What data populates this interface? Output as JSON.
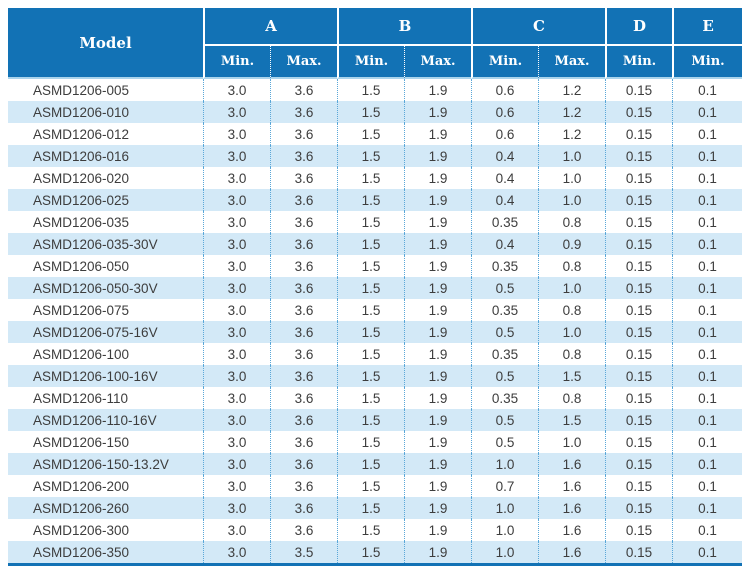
{
  "table": {
    "model_label": "Model",
    "groups": [
      {
        "label": "A"
      },
      {
        "label": "B"
      },
      {
        "label": "C"
      },
      {
        "label": "D"
      },
      {
        "label": "E"
      }
    ],
    "sub_headers": [
      "Min.",
      "Max.",
      "Min.",
      "Max.",
      "Min.",
      "Max.",
      "Min.",
      "Min."
    ],
    "rows": [
      {
        "model": "ASMD1206-005",
        "values": [
          "3.0",
          "3.6",
          "1.5",
          "1.9",
          "0.6",
          "1.2",
          "0.15",
          "0.1"
        ]
      },
      {
        "model": "ASMD1206-010",
        "values": [
          "3.0",
          "3.6",
          "1.5",
          "1.9",
          "0.6",
          "1.2",
          "0.15",
          "0.1"
        ]
      },
      {
        "model": "ASMD1206-012",
        "values": [
          "3.0",
          "3.6",
          "1.5",
          "1.9",
          "0.6",
          "1.2",
          "0.15",
          "0.1"
        ]
      },
      {
        "model": "ASMD1206-016",
        "values": [
          "3.0",
          "3.6",
          "1.5",
          "1.9",
          "0.4",
          "1.0",
          "0.15",
          "0.1"
        ]
      },
      {
        "model": "ASMD1206-020",
        "values": [
          "3.0",
          "3.6",
          "1.5",
          "1.9",
          "0.4",
          "1.0",
          "0.15",
          "0.1"
        ]
      },
      {
        "model": "ASMD1206-025",
        "values": [
          "3.0",
          "3.6",
          "1.5",
          "1.9",
          "0.4",
          "1.0",
          "0.15",
          "0.1"
        ]
      },
      {
        "model": "ASMD1206-035",
        "values": [
          "3.0",
          "3.6",
          "1.5",
          "1.9",
          "0.35",
          "0.8",
          "0.15",
          "0.1"
        ]
      },
      {
        "model": "ASMD1206-035-30V",
        "values": [
          "3.0",
          "3.6",
          "1.5",
          "1.9",
          "0.4",
          "0.9",
          "0.15",
          "0.1"
        ]
      },
      {
        "model": "ASMD1206-050",
        "values": [
          "3.0",
          "3.6",
          "1.5",
          "1.9",
          "0.35",
          "0.8",
          "0.15",
          "0.1"
        ]
      },
      {
        "model": "ASMD1206-050-30V",
        "values": [
          "3.0",
          "3.6",
          "1.5",
          "1.9",
          "0.5",
          "1.0",
          "0.15",
          "0.1"
        ]
      },
      {
        "model": "ASMD1206-075",
        "values": [
          "3.0",
          "3.6",
          "1.5",
          "1.9",
          "0.35",
          "0.8",
          "0.15",
          "0.1"
        ]
      },
      {
        "model": "ASMD1206-075-16V",
        "values": [
          "3.0",
          "3.6",
          "1.5",
          "1.9",
          "0.5",
          "1.0",
          "0.15",
          "0.1"
        ]
      },
      {
        "model": "ASMD1206-100",
        "values": [
          "3.0",
          "3.6",
          "1.5",
          "1.9",
          "0.35",
          "0.8",
          "0.15",
          "0.1"
        ]
      },
      {
        "model": "ASMD1206-100-16V",
        "values": [
          "3.0",
          "3.6",
          "1.5",
          "1.9",
          "0.5",
          "1.5",
          "0.15",
          "0.1"
        ]
      },
      {
        "model": "ASMD1206-110",
        "values": [
          "3.0",
          "3.6",
          "1.5",
          "1.9",
          "0.35",
          "0.8",
          "0.15",
          "0.1"
        ]
      },
      {
        "model": "ASMD1206-110-16V",
        "values": [
          "3.0",
          "3.6",
          "1.5",
          "1.9",
          "0.5",
          "1.5",
          "0.15",
          "0.1"
        ]
      },
      {
        "model": "ASMD1206-150",
        "values": [
          "3.0",
          "3.6",
          "1.5",
          "1.9",
          "0.5",
          "1.0",
          "0.15",
          "0.1"
        ]
      },
      {
        "model": "ASMD1206-150-13.2V",
        "values": [
          "3.0",
          "3.6",
          "1.5",
          "1.9",
          "1.0",
          "1.6",
          "0.15",
          "0.1"
        ]
      },
      {
        "model": "ASMD1206-200",
        "values": [
          "3.0",
          "3.6",
          "1.5",
          "1.9",
          "0.7",
          "1.6",
          "0.15",
          "0.1"
        ]
      },
      {
        "model": "ASMD1206-260",
        "values": [
          "3.0",
          "3.6",
          "1.5",
          "1.9",
          "1.0",
          "1.6",
          "0.15",
          "0.1"
        ]
      },
      {
        "model": "ASMD1206-300",
        "values": [
          "3.0",
          "3.6",
          "1.5",
          "1.9",
          "1.0",
          "1.6",
          "0.15",
          "0.1"
        ]
      },
      {
        "model": "ASMD1206-350",
        "values": [
          "3.0",
          "3.5",
          "1.5",
          "1.9",
          "1.0",
          "1.6",
          "0.15",
          "0.1"
        ]
      }
    ]
  },
  "colors": {
    "header_bg": "#1272b5",
    "header_text": "#ffffff",
    "row_alt_bg": "#d3e9f7",
    "dotted_line": "#5aa7d8",
    "header_underline": "#aad4ec",
    "bottom_border": "#1272b5",
    "body_text": "#3d3d3d"
  },
  "chart_data": {
    "type": "table",
    "title": "",
    "columns": [
      "Model",
      "A Min.",
      "A Max.",
      "B Min.",
      "B Max.",
      "C Min.",
      "C Max.",
      "D Min.",
      "E Min."
    ],
    "rows": [
      [
        "ASMD1206-005",
        3.0,
        3.6,
        1.5,
        1.9,
        0.6,
        1.2,
        0.15,
        0.1
      ],
      [
        "ASMD1206-010",
        3.0,
        3.6,
        1.5,
        1.9,
        0.6,
        1.2,
        0.15,
        0.1
      ],
      [
        "ASMD1206-012",
        3.0,
        3.6,
        1.5,
        1.9,
        0.6,
        1.2,
        0.15,
        0.1
      ],
      [
        "ASMD1206-016",
        3.0,
        3.6,
        1.5,
        1.9,
        0.4,
        1.0,
        0.15,
        0.1
      ],
      [
        "ASMD1206-020",
        3.0,
        3.6,
        1.5,
        1.9,
        0.4,
        1.0,
        0.15,
        0.1
      ],
      [
        "ASMD1206-025",
        3.0,
        3.6,
        1.5,
        1.9,
        0.4,
        1.0,
        0.15,
        0.1
      ],
      [
        "ASMD1206-035",
        3.0,
        3.6,
        1.5,
        1.9,
        0.35,
        0.8,
        0.15,
        0.1
      ],
      [
        "ASMD1206-035-30V",
        3.0,
        3.6,
        1.5,
        1.9,
        0.4,
        0.9,
        0.15,
        0.1
      ],
      [
        "ASMD1206-050",
        3.0,
        3.6,
        1.5,
        1.9,
        0.35,
        0.8,
        0.15,
        0.1
      ],
      [
        "ASMD1206-050-30V",
        3.0,
        3.6,
        1.5,
        1.9,
        0.5,
        1.0,
        0.15,
        0.1
      ],
      [
        "ASMD1206-075",
        3.0,
        3.6,
        1.5,
        1.9,
        0.35,
        0.8,
        0.15,
        0.1
      ],
      [
        "ASMD1206-075-16V",
        3.0,
        3.6,
        1.5,
        1.9,
        0.5,
        1.0,
        0.15,
        0.1
      ],
      [
        "ASMD1206-100",
        3.0,
        3.6,
        1.5,
        1.9,
        0.35,
        0.8,
        0.15,
        0.1
      ],
      [
        "ASMD1206-100-16V",
        3.0,
        3.6,
        1.5,
        1.9,
        0.5,
        1.5,
        0.15,
        0.1
      ],
      [
        "ASMD1206-110",
        3.0,
        3.6,
        1.5,
        1.9,
        0.35,
        0.8,
        0.15,
        0.1
      ],
      [
        "ASMD1206-110-16V",
        3.0,
        3.6,
        1.5,
        1.9,
        0.5,
        1.5,
        0.15,
        0.1
      ],
      [
        "ASMD1206-150",
        3.0,
        3.6,
        1.5,
        1.9,
        0.5,
        1.0,
        0.15,
        0.1
      ],
      [
        "ASMD1206-150-13.2V",
        3.0,
        3.6,
        1.5,
        1.9,
        1.0,
        1.6,
        0.15,
        0.1
      ],
      [
        "ASMD1206-200",
        3.0,
        3.6,
        1.5,
        1.9,
        0.7,
        1.6,
        0.15,
        0.1
      ],
      [
        "ASMD1206-260",
        3.0,
        3.6,
        1.5,
        1.9,
        1.0,
        1.6,
        0.15,
        0.1
      ],
      [
        "ASMD1206-300",
        3.0,
        3.6,
        1.5,
        1.9,
        1.0,
        1.6,
        0.15,
        0.1
      ],
      [
        "ASMD1206-350",
        3.0,
        3.5,
        1.5,
        1.9,
        1.0,
        1.6,
        0.15,
        0.1
      ]
    ]
  }
}
